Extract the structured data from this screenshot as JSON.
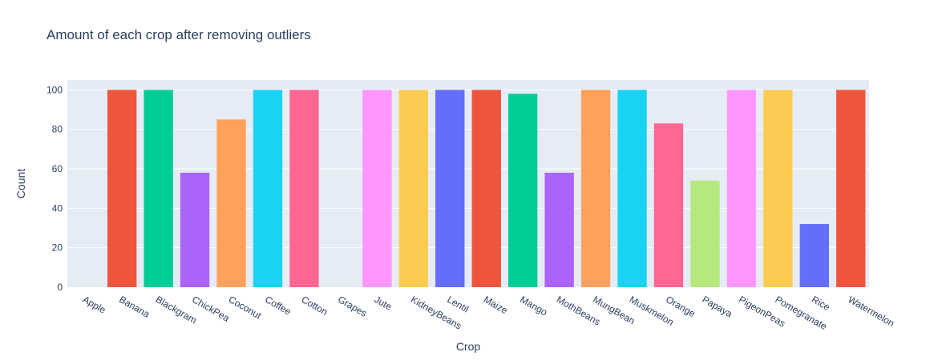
{
  "chart_data": {
    "type": "bar",
    "title": "Amount of each crop after removing outliers",
    "xlabel": "Crop",
    "ylabel": "Count",
    "ylim": [
      0,
      105
    ],
    "yticks": [
      0,
      20,
      40,
      60,
      80,
      100
    ],
    "grid": true,
    "legend": "none",
    "categories": [
      "Apple",
      "Banana",
      "Blackgram",
      "ChickPea",
      "Coconut",
      "Coffee",
      "Cotton",
      "Grapes",
      "Jute",
      "KidneyBeans",
      "Lentil",
      "Maize",
      "Mango",
      "MothBeans",
      "MungBean",
      "Muskmelon",
      "Orange",
      "Papaya",
      "PigeonPeas",
      "Pomegranate",
      "Rice",
      "Watermelon"
    ],
    "values": [
      0,
      100,
      100,
      58,
      85,
      100,
      100,
      0,
      100,
      100,
      100,
      100,
      98,
      58,
      100,
      100,
      83,
      54,
      100,
      100,
      32,
      100
    ],
    "colors": [
      "#636efa",
      "#ef553b",
      "#00cc96",
      "#ab63fa",
      "#ffa15a",
      "#19d3f3",
      "#ff6692",
      "#b6e880",
      "#ff97ff",
      "#fecb52",
      "#636efa",
      "#ef553b",
      "#00cc96",
      "#ab63fa",
      "#ffa15a",
      "#19d3f3",
      "#ff6692",
      "#b6e880",
      "#ff97ff",
      "#fecb52",
      "#636efa",
      "#ef553b"
    ],
    "plot_background": "#e5ecf6",
    "grid_color": "#ffffff",
    "text_color": "#2a3f5f"
  }
}
